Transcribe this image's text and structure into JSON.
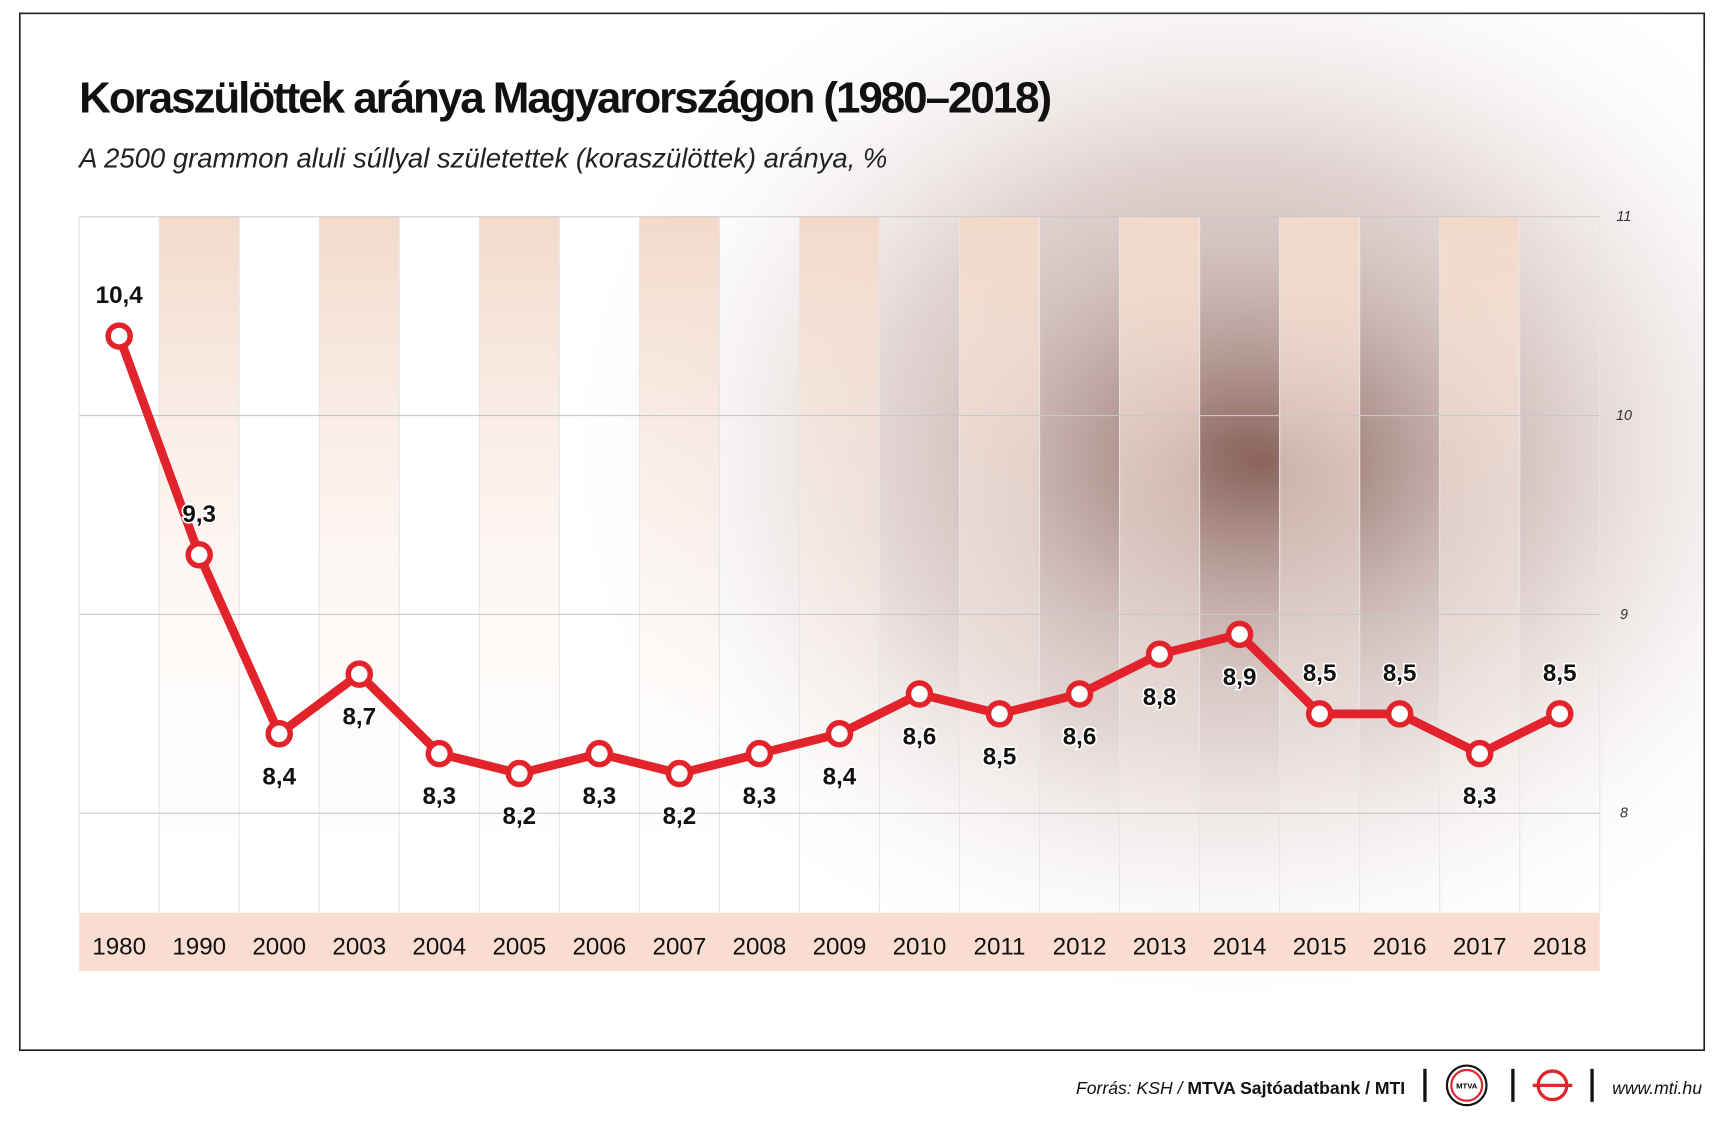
{
  "chart_data": {
    "type": "line",
    "title": "Koraszülöttek aránya Magyarországon (1980–2018)",
    "subtitle": "A 2500 grammon aluli súllyal születettek (koraszülöttek) aránya, %",
    "categories": [
      "1980",
      "1990",
      "2000",
      "2003",
      "2004",
      "2005",
      "2006",
      "2007",
      "2008",
      "2009",
      "2010",
      "2011",
      "2012",
      "2013",
      "2014",
      "2015",
      "2016",
      "2017",
      "2018"
    ],
    "series": [
      {
        "name": "Koraszülöttek aránya",
        "color": "#e3232b",
        "values": [
          10.4,
          9.3,
          8.4,
          8.7,
          8.3,
          8.2,
          8.3,
          8.2,
          8.3,
          8.4,
          8.6,
          8.5,
          8.6,
          8.8,
          8.9,
          8.5,
          8.5,
          8.3,
          8.5
        ],
        "value_labels": [
          "10,4",
          "9,3",
          "8,4",
          "8,7",
          "8,3",
          "8,2",
          "8,3",
          "8,2",
          "8,3",
          "8,4",
          "8,6",
          "8,5",
          "8,6",
          "8,8",
          "8,9",
          "8,5",
          "8,5",
          "8,3",
          "8,5"
        ]
      }
    ],
    "ylim": [
      7.5,
      11
    ],
    "yticks": [
      8,
      9,
      10,
      11
    ],
    "grid": true,
    "source": {
      "lead": "Forrás: KSH /",
      "org": "MTVA Sajtóadatbank / MTI"
    },
    "logo_text": "MTVA",
    "website": "www.mti.hu"
  }
}
